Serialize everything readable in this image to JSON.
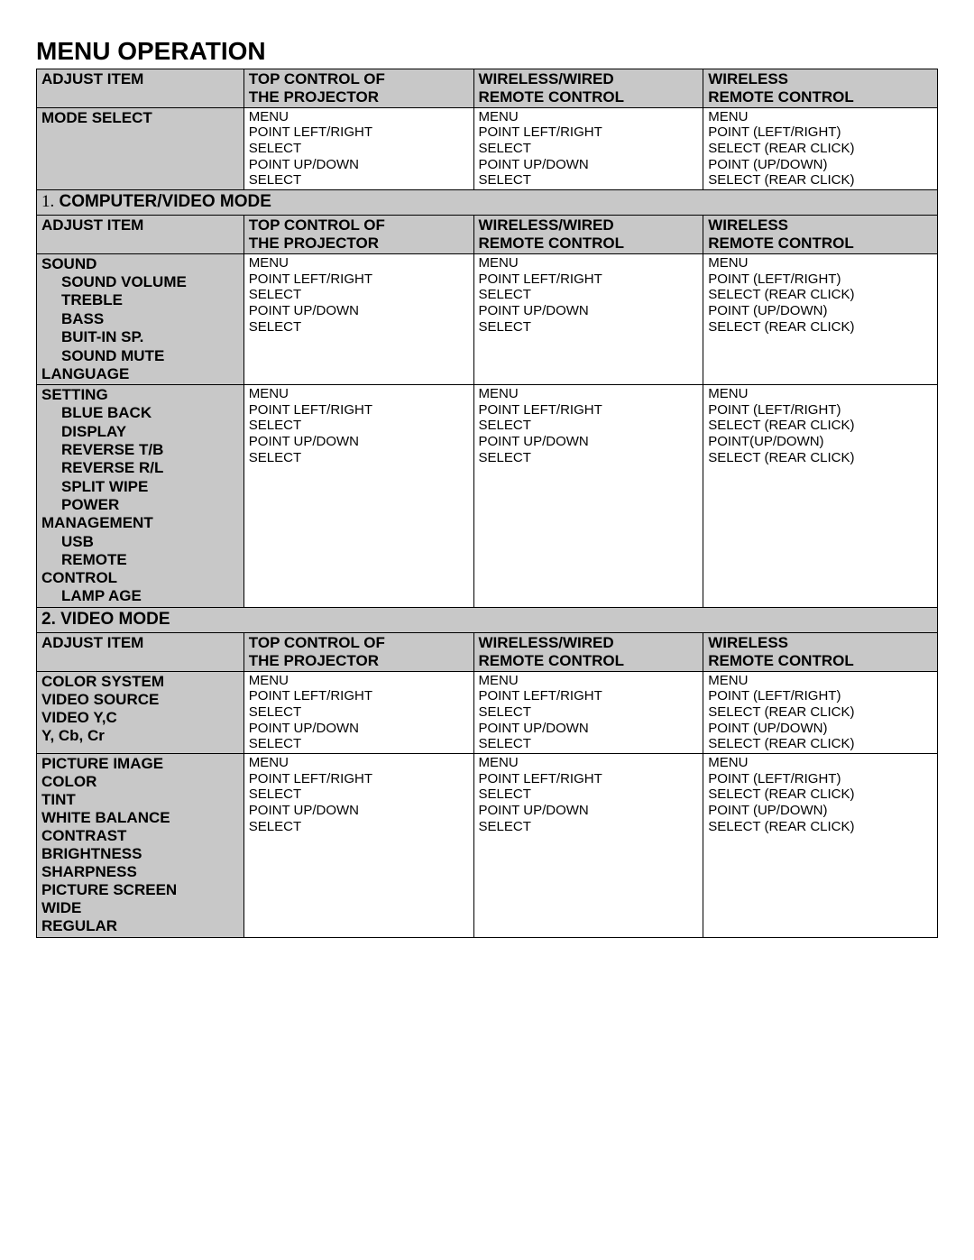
{
  "title": "MENU OPERATION",
  "headers": {
    "c0": "ADJUST ITEM",
    "c1a": "TOP CONTROL OF",
    "c1b": "THE PROJECTOR",
    "c2a": "WIRELESS/WIRED",
    "c2b": "REMOTE CONTROL",
    "c3a": "WIRELESS",
    "c3b": "REMOTE CONTROL"
  },
  "stepsA": {
    "l0": "MENU",
    "l1": "POINT LEFT/RIGHT",
    "l2": "SELECT",
    "l3": "POINT UP/DOWN",
    "l4": "SELECT"
  },
  "stepsB": {
    "l0": "MENU",
    "l1": "POINT (LEFT/RIGHT)",
    "l2": "SELECT (REAR CLICK)",
    "l3": "POINT (UP/DOWN)",
    "l4": "SELECT (REAR CLICK)"
  },
  "stepsB2": {
    "l0": "MENU",
    "l1": "POINT (LEFT/RIGHT)",
    "l2": "SELECT (REAR CLICK)",
    "l3": "POINT(UP/DOWN)",
    "l4": "SELECT (REAR CLICK)"
  },
  "row_mode_select": "MODE SELECT",
  "section1_num": "1.",
  "section1_label": "COMPUTER/VIDEO MODE",
  "sec1": {
    "sound": "SOUND",
    "sound_volume": "SOUND VOLUME",
    "treble": "TREBLE",
    "bass": "BASS",
    "builtin_sp": "BUIT-IN SP.",
    "sound_mute": "SOUND MUTE",
    "language": "LANGUAGE",
    "setting": "SETTING",
    "blue_back": "BLUE BACK",
    "display": "DISPLAY",
    "reverse_tb": "REVERSE T/B",
    "reverse_rl": "REVERSE R/L",
    "split_wipe": "SPLIT WIPE",
    "power": "POWER",
    "management": "MANAGEMENT",
    "usb": "USB",
    "remote": "REMOTE",
    "control": "CONTROL",
    "lamp_age": "LAMP AGE"
  },
  "section2_label": "2.  VIDEO MODE",
  "sec2": {
    "color_system": "COLOR SYSTEM",
    "video_source": "VIDEO SOURCE",
    "video_yc": "VIDEO Y,C",
    "ycbcr": "Y, Cb, Cr",
    "picture_image": "PICTURE IMAGE",
    "color": "COLOR",
    "tint": "TINT",
    "white_balance": "WHITE BALANCE",
    "contrast": "CONTRAST",
    "brightness": "BRIGHTNESS",
    "sharpness": "SHARPNESS",
    "picture_screen": "PICTURE SCREEN",
    "wide": "WIDE",
    "regular": "REGULAR"
  }
}
